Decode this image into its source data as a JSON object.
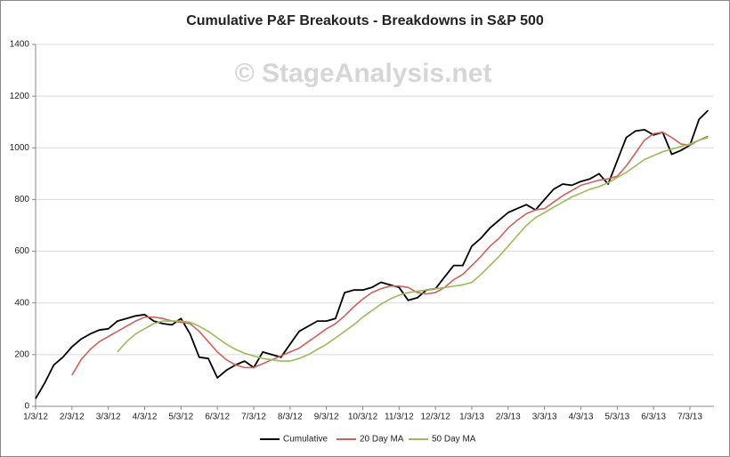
{
  "chart_data": {
    "type": "line",
    "title": "Cumulative P&F Breakouts - Breakdowns in S&P 500",
    "annotation": "© StageAnalysis.net",
    "categories": [
      "1/3/12",
      null,
      null,
      null,
      "2/3/12",
      null,
      null,
      null,
      "3/3/12",
      null,
      null,
      null,
      "4/3/12",
      null,
      null,
      null,
      "5/3/12",
      null,
      null,
      null,
      "6/3/12",
      null,
      null,
      null,
      "7/3/12",
      null,
      null,
      null,
      "8/3/12",
      null,
      null,
      null,
      "9/3/12",
      null,
      null,
      null,
      "10/3/12",
      null,
      null,
      null,
      "11/3/12",
      null,
      null,
      null,
      "12/3/12",
      null,
      null,
      null,
      "1/3/13",
      null,
      null,
      null,
      "2/3/13",
      null,
      null,
      null,
      "3/3/13",
      null,
      null,
      null,
      "4/3/13",
      null,
      null,
      null,
      "5/3/13",
      null,
      null,
      null,
      "6/3/13",
      null,
      null,
      null,
      "7/3/13",
      null,
      null
    ],
    "series": [
      {
        "name": "Cumulative",
        "color": "#000000",
        "values": [
          30,
          90,
          160,
          190,
          230,
          260,
          280,
          295,
          300,
          330,
          340,
          350,
          355,
          330,
          320,
          315,
          340,
          280,
          190,
          185,
          110,
          140,
          160,
          175,
          150,
          210,
          200,
          190,
          240,
          290,
          310,
          330,
          330,
          340,
          440,
          450,
          450,
          460,
          480,
          470,
          460,
          410,
          420,
          450,
          455,
          500,
          545,
          545,
          620,
          650,
          690,
          720,
          750,
          765,
          780,
          760,
          800,
          840,
          860,
          855,
          870,
          880,
          900,
          860,
          950,
          1040,
          1065,
          1070,
          1050,
          1060,
          975,
          990,
          1010,
          1110,
          1145
        ]
      },
      {
        "name": "20 Day MA",
        "color": "#d0605c",
        "values": [
          null,
          null,
          null,
          null,
          120,
          180,
          220,
          250,
          270,
          290,
          310,
          330,
          345,
          345,
          340,
          330,
          325,
          320,
          290,
          250,
          210,
          180,
          160,
          150,
          150,
          165,
          180,
          195,
          210,
          225,
          250,
          275,
          300,
          320,
          350,
          385,
          415,
          440,
          455,
          465,
          465,
          460,
          440,
          435,
          440,
          460,
          490,
          510,
          545,
          580,
          620,
          650,
          690,
          720,
          745,
          760,
          765,
          790,
          815,
          835,
          855,
          865,
          875,
          880,
          890,
          930,
          980,
          1030,
          1055,
          1060,
          1040,
          1015,
          1010,
          1030,
          1045
        ]
      },
      {
        "name": "50 Day MA",
        "color": "#9bbb59",
        "values": [
          null,
          null,
          null,
          null,
          null,
          null,
          null,
          null,
          null,
          210,
          250,
          280,
          300,
          320,
          330,
          330,
          330,
          325,
          310,
          290,
          265,
          240,
          220,
          205,
          195,
          185,
          180,
          175,
          175,
          185,
          200,
          220,
          240,
          265,
          290,
          315,
          345,
          370,
          395,
          415,
          430,
          440,
          445,
          450,
          455,
          460,
          465,
          470,
          480,
          510,
          545,
          580,
          620,
          660,
          700,
          730,
          750,
          770,
          790,
          810,
          825,
          840,
          850,
          865,
          885,
          905,
          930,
          955,
          970,
          985,
          995,
          1005,
          1015,
          1030,
          1040
        ]
      }
    ],
    "ylim": [
      0,
      1400
    ],
    "yticks": [
      0,
      200,
      400,
      600,
      800,
      1000,
      1200,
      1400
    ],
    "grid": true,
    "legend": "bottom"
  }
}
